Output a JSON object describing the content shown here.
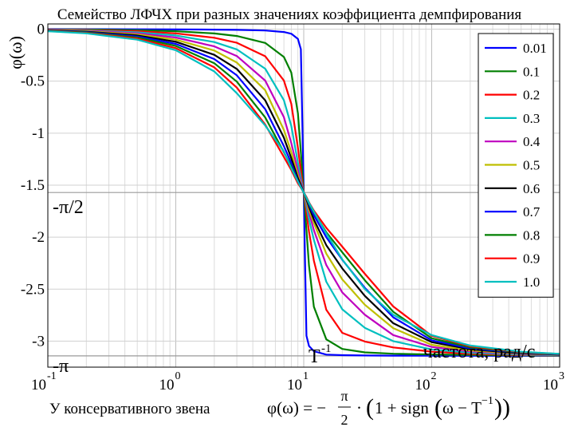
{
  "chart_data": {
    "type": "line",
    "title": "Семейство ЛФЧХ при разных значениях коэффициента демпфирования",
    "ylabel": "φ(ω)",
    "xlabel": "частота, рад/с",
    "xscale": "log",
    "xlim": [
      0.1,
      1000
    ],
    "ylim": [
      -3.25,
      0.05
    ],
    "grid": true,
    "legend_position": "top-right",
    "corner_frequency": 10,
    "y_ticks": [
      {
        "value": 0,
        "label": "0"
      },
      {
        "value": -0.5,
        "label": "-0.5"
      },
      {
        "value": -1,
        "label": "-1"
      },
      {
        "value": -1.5,
        "label": "-1.5"
      },
      {
        "value": -2,
        "label": "-2"
      },
      {
        "value": -2.5,
        "label": "-2.5"
      },
      {
        "value": -3,
        "label": "-3"
      }
    ],
    "x_ticks": [
      {
        "value": 0.1,
        "base": "10",
        "exp": "-1"
      },
      {
        "value": 1,
        "base": "10",
        "exp": "0"
      },
      {
        "value": 10,
        "base": "10",
        "exp": "1"
      },
      {
        "value": 100,
        "base": "10",
        "exp": "2"
      },
      {
        "value": 1000,
        "base": "10",
        "exp": "3"
      }
    ],
    "reference_lines": [
      {
        "value": -1.5708,
        "label": "-π/2"
      },
      {
        "value": -3.1416,
        "label": "-π"
      }
    ],
    "corner_label": {
      "base": "T",
      "exp": "-1"
    },
    "series_x": [
      0.1,
      0.2,
      0.5,
      1,
      2,
      3,
      5,
      7,
      8,
      9,
      9.5,
      10,
      10.5,
      11,
      12,
      15,
      20,
      30,
      50,
      100,
      200,
      500,
      1000
    ],
    "series": [
      {
        "name": "0.01",
        "color": "#0000ff",
        "values": [
          -0.0002,
          -0.0004,
          -0.0011,
          -0.002,
          -0.0042,
          -0.0066,
          -0.0133,
          -0.0275,
          -0.0444,
          -0.0946,
          -0.1934,
          -1.5708,
          -2.9477,
          -3.0463,
          -3.0962,
          -3.1296,
          -3.1349,
          -3.1379,
          -3.1395,
          -3.1405,
          -3.1409,
          -3.1412,
          -3.1414
        ]
      },
      {
        "name": "0.1",
        "color": "#007f00",
        "values": [
          -0.002,
          -0.004,
          -0.0101,
          -0.0202,
          -0.0416,
          -0.0659,
          -0.1326,
          -0.2681,
          -0.4182,
          -0.8093,
          -1.1848,
          -1.5708,
          -1.9301,
          -2.2745,
          -2.6689,
          -2.9828,
          -3.0747,
          -3.1077,
          -3.1207,
          -3.1283,
          -3.1316,
          -3.1362,
          -3.1396
        ]
      },
      {
        "name": "0.2",
        "color": "#ff0000",
        "values": [
          -0.004,
          -0.0081,
          -0.0202,
          -0.0404,
          -0.0831,
          -0.131,
          -0.2606,
          -0.4944,
          -0.718,
          -1.1411,
          -1.3618,
          -1.5708,
          -1.7669,
          -1.9474,
          -2.2266,
          -2.6985,
          -2.9198,
          -3.0036,
          -3.0605,
          -3.1012,
          -3.1215,
          -3.1335,
          -3.1375
        ]
      },
      {
        "name": "0.3",
        "color": "#00bfbf",
        "values": [
          -0.0061,
          -0.0121,
          -0.0303,
          -0.0606,
          -0.1244,
          -0.1951,
          -0.3805,
          -0.6837,
          -0.9305,
          -1.2864,
          -1.4355,
          -1.5708,
          -1.7014,
          -1.8299,
          -2.0253,
          -2.4287,
          -2.6934,
          -2.8719,
          -2.9997,
          -3.0795,
          -3.1114,
          -3.1296,
          -3.1355
        ]
      },
      {
        "name": "0.4",
        "color": "#bf00bf",
        "values": [
          -0.0081,
          -0.0162,
          -0.0404,
          -0.0808,
          -0.1654,
          -0.2585,
          -0.4951,
          -0.846,
          -1.0955,
          -1.3619,
          -1.4706,
          -1.5708,
          -1.6689,
          -1.7617,
          -1.9324,
          -2.2681,
          -2.531,
          -2.7455,
          -2.9412,
          -3.0557,
          -3.0991,
          -3.1238,
          -3.1315
        ]
      },
      {
        "name": "0.5",
        "color": "#bfbf00",
        "values": [
          -0.0101,
          -0.0202,
          -0.0505,
          -0.101,
          -0.2059,
          -0.3212,
          -0.588,
          -0.9702,
          -1.1833,
          -1.4047,
          -1.4937,
          -1.5708,
          -1.6536,
          -1.7396,
          -1.8633,
          -2.1589,
          -2.4061,
          -2.6498,
          -2.8745,
          -3.0351,
          -3.0889,
          -3.121,
          -3.1311
        ]
      },
      {
        "name": "0.6",
        "color": "#000000",
        "values": [
          -0.0121,
          -0.0242,
          -0.0606,
          -0.1213,
          -0.2471,
          -0.3832,
          -0.6846,
          -1.0436,
          -1.2424,
          -1.4337,
          -1.5,
          -1.5708,
          -1.6379,
          -1.7093,
          -1.83,
          -2.0777,
          -2.3008,
          -2.5649,
          -2.8268,
          -3.0098,
          -3.0784,
          -3.1164,
          -3.1295
        ]
      },
      {
        "name": "0.7",
        "color": "#0000ff",
        "values": [
          -0.0141,
          -0.0283,
          -0.0707,
          -0.1416,
          -0.2875,
          -0.4444,
          -0.77,
          -1.125,
          -1.2874,
          -1.4598,
          -1.5152,
          -1.5708,
          -1.6218,
          -1.6916,
          -1.7899,
          -2.0007,
          -2.2167,
          -2.4872,
          -2.77,
          -2.9924,
          -3.07,
          -3.1127,
          -3.1278
        ]
      },
      {
        "name": "0.8",
        "color": "#007f00",
        "values": [
          -0.0162,
          -0.0323,
          -0.0808,
          -0.162,
          -0.3275,
          -0.5045,
          -0.8491,
          -1.1829,
          -1.3203,
          -1.4661,
          -1.521,
          -1.5708,
          -1.6198,
          -1.6783,
          -1.7621,
          -1.953,
          -2.1457,
          -2.414,
          -2.7174,
          -2.972,
          -3.0596,
          -3.1085,
          -3.1254
        ]
      },
      {
        "name": "0.9",
        "color": "#ff0000",
        "values": [
          -0.0182,
          -0.0364,
          -0.0909,
          -0.1823,
          -0.3674,
          -0.5628,
          -0.9187,
          -1.229,
          -1.3543,
          -1.4832,
          -1.524,
          -1.5708,
          -1.6135,
          -1.6663,
          -1.7449,
          -1.9102,
          -2.0914,
          -2.3522,
          -2.6661,
          -2.9486,
          -3.05,
          -3.105,
          -3.1234
        ]
      },
      {
        "name": "1.0",
        "color": "#00bfbf",
        "values": [
          -0.0202,
          -0.0404,
          -0.1011,
          -0.2026,
          -0.4069,
          -0.6165,
          -0.9273,
          -1.1762,
          -1.3373,
          -1.4659,
          -1.5191,
          -1.5708,
          -1.622,
          -1.6708,
          -1.7552,
          -1.9646,
          -2.2143,
          -2.4988,
          -2.7468,
          -2.9413,
          -3.0419,
          -3.1016,
          -3.1216
        ]
      }
    ]
  },
  "footer": {
    "prefix": "У консервативного звена",
    "formula_text": "φ(ω) = −π/2 · (1 + sign(ω − T⁻¹))"
  }
}
